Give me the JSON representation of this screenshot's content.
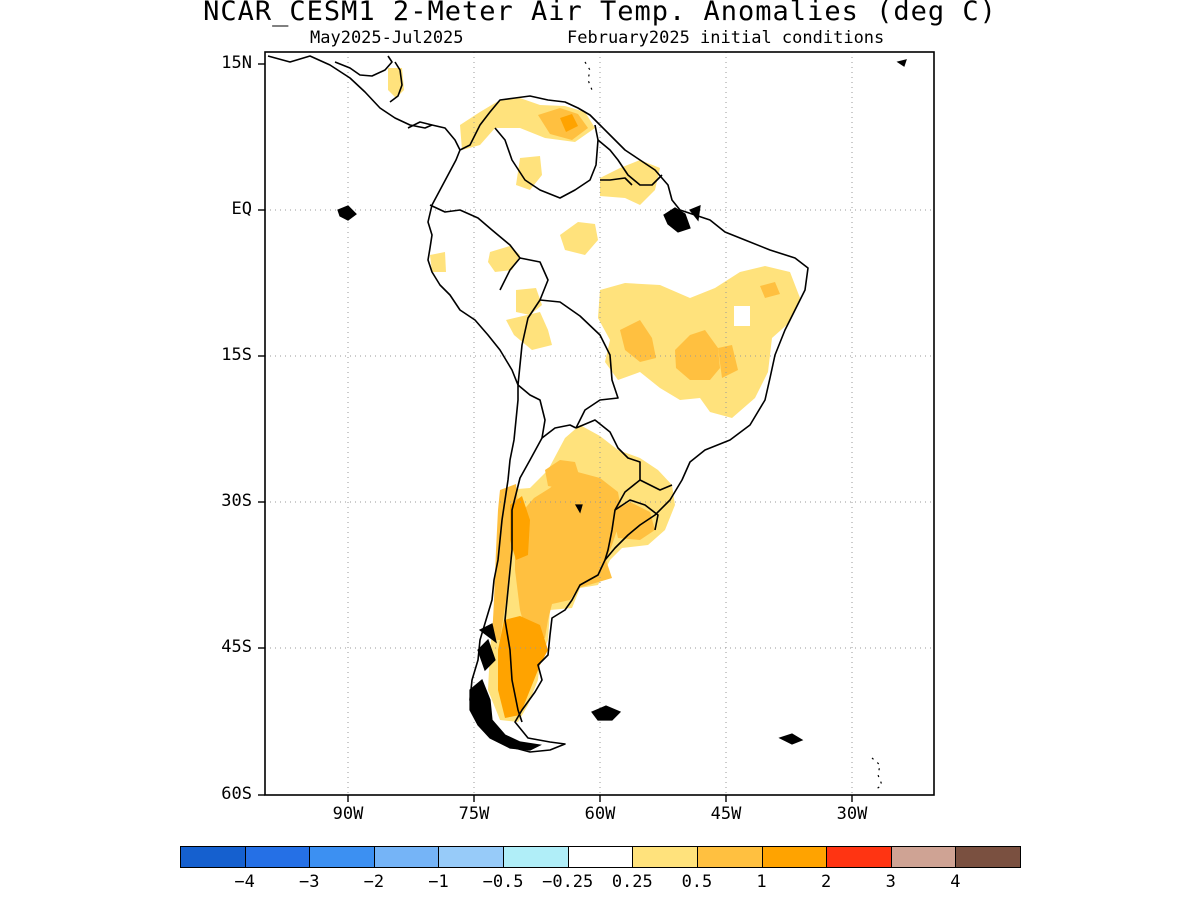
{
  "title": "NCAR_CESM1 2-Meter Air Temp. Anomalies (deg C)",
  "subtitle_left": "May2025-Jul2025",
  "subtitle_right": "February2025 initial conditions",
  "axes": {
    "lat_labels": [
      "15N",
      "EQ",
      "15S",
      "30S",
      "45S",
      "60S"
    ],
    "lon_labels": [
      "90W",
      "75W",
      "60W",
      "45W",
      "30W"
    ],
    "lon_range": [
      -100,
      -20
    ],
    "lat_range": [
      -60,
      15
    ],
    "gridlines": "dotted"
  },
  "legend": {
    "colors": [
      "#1560cf",
      "#2570e6",
      "#3c90f2",
      "#75b4f7",
      "#97cbf9",
      "#b0eef8",
      "#ffffff",
      "#ffe27c",
      "#ffc040",
      "#ffa300",
      "#ff3412",
      "#cfa394",
      "#7a5040"
    ],
    "labels": [
      "−4",
      "−3",
      "−2",
      "−1",
      "−0.5",
      "−0.25",
      "0.25",
      "0.5",
      "1",
      "2",
      "3",
      "4"
    ]
  },
  "anomaly_colors": {
    "light": "#ffe27c",
    "medium": "#ffc040",
    "strong": "#ffa300"
  }
}
